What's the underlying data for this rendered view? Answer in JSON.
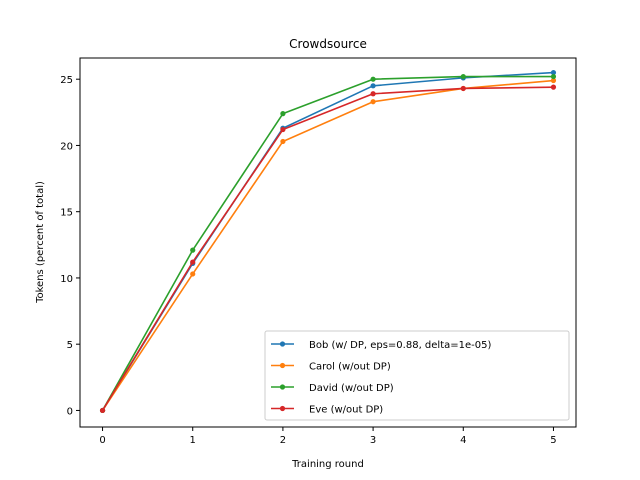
{
  "chart_data": {
    "type": "line",
    "title": "Crowdsource",
    "xlabel": "Training round",
    "ylabel": "Tokens (percent of total)",
    "x": [
      0,
      1,
      2,
      3,
      4,
      5
    ],
    "xlim": [
      -0.25,
      5.25
    ],
    "ylim": [
      -1.25,
      26.6
    ],
    "xticks": [
      0,
      1,
      2,
      3,
      4,
      5
    ],
    "yticks": [
      0,
      5,
      10,
      15,
      20,
      25
    ],
    "grid": false,
    "legend_position": "lower-right",
    "series": [
      {
        "name": "Bob (w/ DP, eps=0.88, delta=1e-05)",
        "color": "#1f77b4",
        "values": [
          0,
          11.1,
          21.3,
          24.5,
          25.1,
          25.5
        ]
      },
      {
        "name": "Carol (w/out DP)",
        "color": "#ff7f0e",
        "values": [
          0,
          10.3,
          20.3,
          23.3,
          24.3,
          24.9
        ]
      },
      {
        "name": "David (w/out DP)",
        "color": "#2ca02c",
        "values": [
          0,
          12.1,
          22.4,
          25.0,
          25.2,
          25.2
        ]
      },
      {
        "name": "Eve (w/out DP)",
        "color": "#d62728",
        "values": [
          0,
          11.2,
          21.2,
          23.9,
          24.3,
          24.4
        ]
      }
    ]
  }
}
